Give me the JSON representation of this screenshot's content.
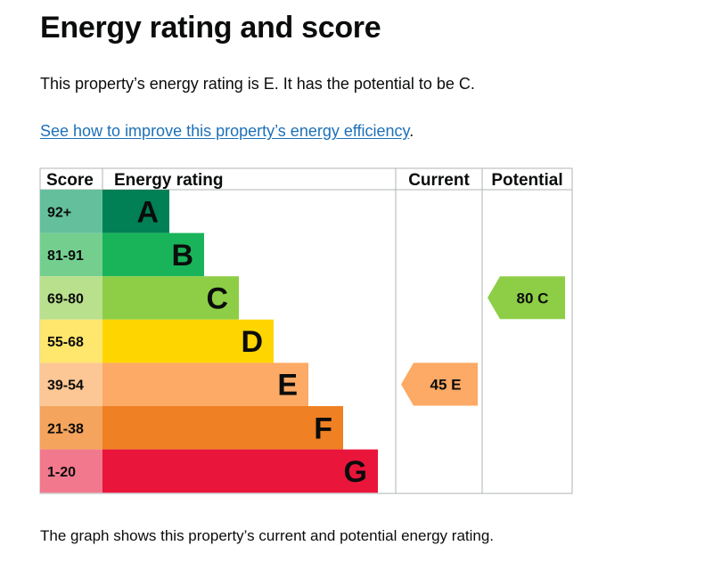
{
  "heading": "Energy rating and score",
  "summary": "This property’s energy rating is E. It has the potential to be C.",
  "improve_link": "See how to improve this property’s energy efficiency",
  "improve_link_suffix": ".",
  "footer": "The graph shows this property’s current and potential energy rating.",
  "chart_data": {
    "type": "bar",
    "title": "Energy rating and score",
    "columns": [
      "Score",
      "Energy rating",
      "Current",
      "Potential"
    ],
    "bands": [
      {
        "letter": "A",
        "range": "92+",
        "color": "#008054",
        "score_color": "#64c09c"
      },
      {
        "letter": "B",
        "range": "81-91",
        "color": "#19b459",
        "score_color": "#74cf8f"
      },
      {
        "letter": "C",
        "range": "69-80",
        "color": "#8dce46",
        "score_color": "#b9e08d"
      },
      {
        "letter": "D",
        "range": "55-68",
        "color": "#ffd500",
        "score_color": "#ffe66c"
      },
      {
        "letter": "E",
        "range": "39-54",
        "color": "#fcaa65",
        "score_color": "#fcc795"
      },
      {
        "letter": "F",
        "range": "21-38",
        "color": "#ef8023",
        "score_color": "#f4a45c"
      },
      {
        "letter": "G",
        "range": "1-20",
        "color": "#e9153b",
        "score_color": "#f2788d"
      }
    ],
    "current": {
      "score": 45,
      "letter": "E",
      "label": "45  E",
      "color": "#fcaa65"
    },
    "potential": {
      "score": 80,
      "letter": "C",
      "label": "80  C",
      "color": "#8dce46"
    }
  }
}
